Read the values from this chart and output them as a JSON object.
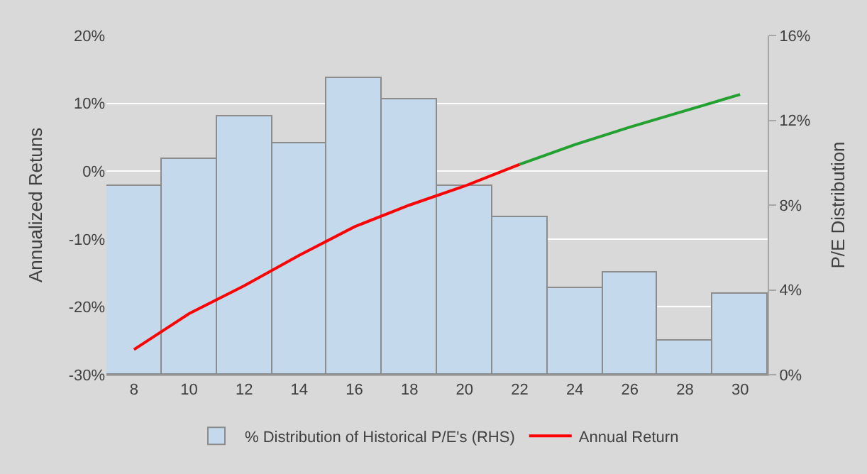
{
  "chart_data": {
    "type": "bar",
    "ylabel": "Annualized Retuns",
    "y2label": "P/E Distribution",
    "categories": [
      "8",
      "10",
      "12",
      "14",
      "16",
      "18",
      "20",
      "22",
      "24",
      "26",
      "28",
      "30"
    ],
    "series": [
      {
        "name": "% Distribution of Historical P/E's (RHS)",
        "axis": "y2",
        "color": "#c5d9ec",
        "values": [
          8.9,
          10.2,
          12.2,
          10.9,
          14.0,
          13.0,
          8.9,
          7.4,
          4.1,
          4.8,
          1.6,
          3.8
        ]
      },
      {
        "name": "Annual Return",
        "type": "line",
        "axis": "y",
        "color": "#ff0000",
        "values": [
          -26.3,
          -21.0,
          -16.9,
          -12.4,
          -8.2,
          -5.0,
          -2.2,
          1.0,
          null,
          null,
          null,
          null
        ]
      },
      {
        "type": "line",
        "axis": "y",
        "color": "#22a030",
        "values": [
          null,
          null,
          null,
          null,
          null,
          null,
          null,
          1.0,
          3.9,
          6.5,
          8.9,
          11.3
        ]
      }
    ],
    "ylim": [
      -30,
      20
    ],
    "yticks": [
      {
        "value": -30,
        "label": "-30%"
      },
      {
        "value": -20,
        "label": "-20%"
      },
      {
        "value": -10,
        "label": "-10%"
      },
      {
        "value": 0,
        "label": "0%"
      },
      {
        "value": 10,
        "label": "10%"
      },
      {
        "value": 20,
        "label": "20%"
      }
    ],
    "y2lim": [
      0,
      16
    ],
    "y2ticks": [
      {
        "value": 0,
        "label": "0%"
      },
      {
        "value": 4,
        "label": "4%"
      },
      {
        "value": 8,
        "label": "8%"
      },
      {
        "value": 12,
        "label": "12%"
      },
      {
        "value": 16,
        "label": "16%"
      }
    ],
    "grid": "y",
    "legend": "bottom",
    "marker": "none",
    "line_style": "solid"
  }
}
